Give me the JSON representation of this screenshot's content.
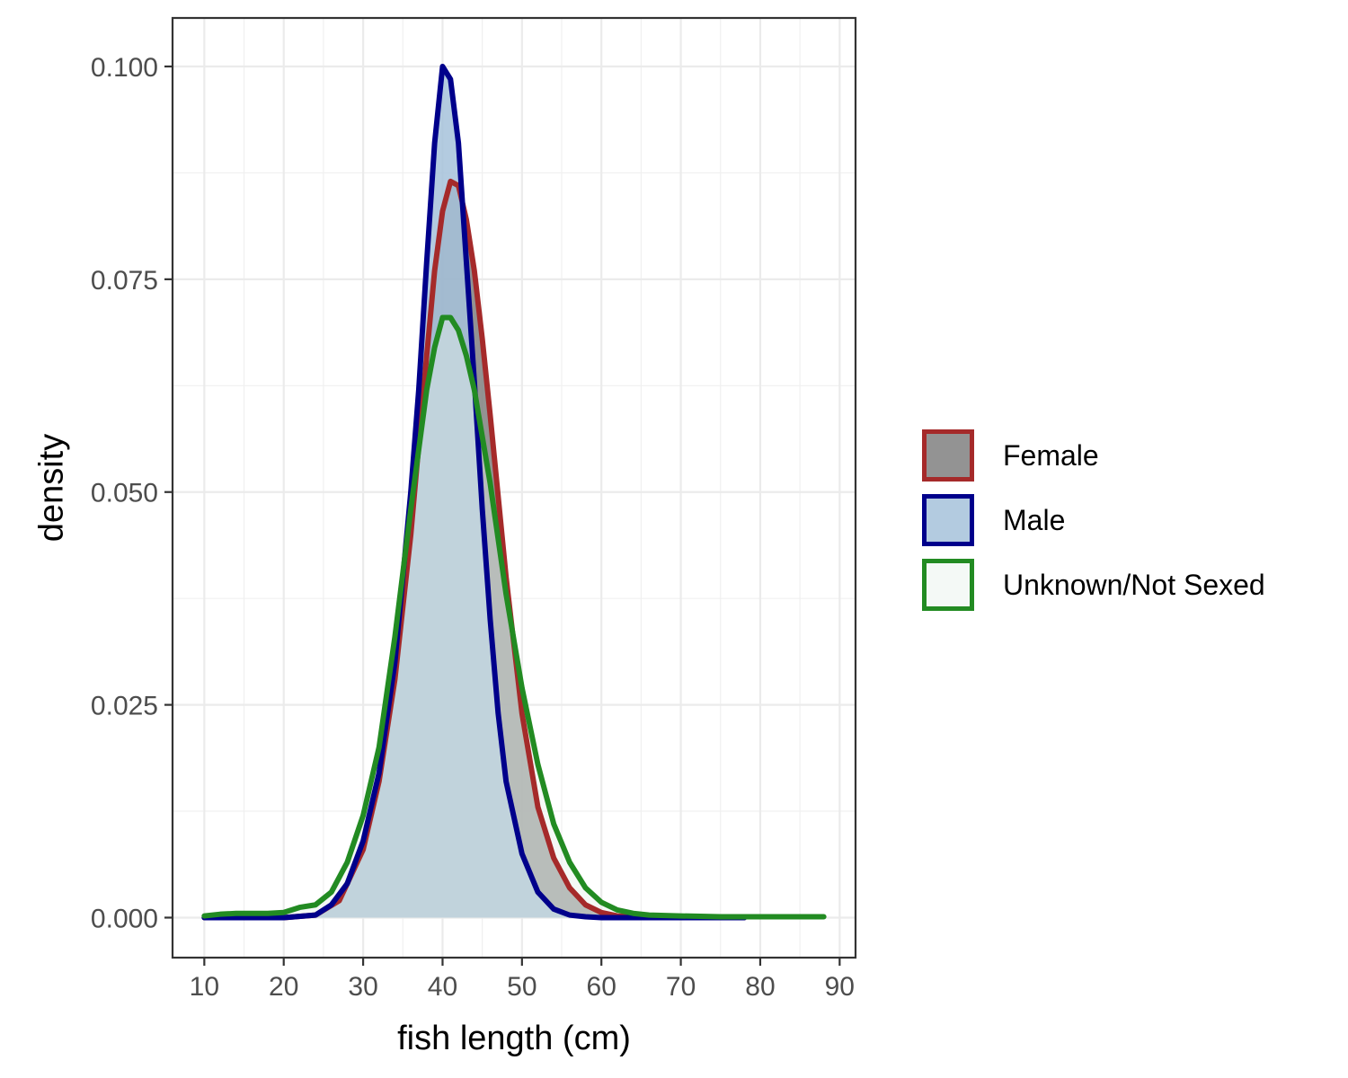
{
  "chart_data": {
    "type": "area",
    "xlabel": "fish length (cm)",
    "ylabel": "density",
    "xlim": [
      6,
      92
    ],
    "ylim": [
      -0.0047,
      0.1057
    ],
    "x_ticks": [
      10,
      20,
      30,
      40,
      50,
      60,
      70,
      80,
      90
    ],
    "x_tick_labels": [
      "10",
      "20",
      "30",
      "40",
      "50",
      "60",
      "70",
      "80",
      "90"
    ],
    "y_ticks": [
      0,
      0.025,
      0.05,
      0.075,
      0.1
    ],
    "y_tick_labels": [
      "0.000",
      "0.025",
      "0.050",
      "0.075",
      "0.100"
    ],
    "grid": true,
    "legend_position": "right",
    "series": [
      {
        "name": "Female",
        "line_color": "#a52a2a",
        "fill_color": "#808080",
        "fill_opacity": 0.85,
        "x": [
          10,
          20,
          24,
          27,
          30,
          32,
          34,
          36,
          38,
          39,
          40,
          41,
          42,
          43,
          44,
          45,
          46,
          48,
          50,
          52,
          54,
          56,
          58,
          60,
          62,
          65,
          70,
          75,
          78
        ],
        "y": [
          0,
          0,
          0.0003,
          0.002,
          0.008,
          0.016,
          0.028,
          0.045,
          0.066,
          0.076,
          0.083,
          0.0865,
          0.086,
          0.082,
          0.076,
          0.068,
          0.059,
          0.04,
          0.024,
          0.013,
          0.007,
          0.0035,
          0.0015,
          0.0006,
          0.0002,
          0.0001,
          0,
          0,
          0
        ]
      },
      {
        "name": "Male",
        "line_color": "#00008b",
        "fill_color": "#a6c2db",
        "fill_opacity": 0.85,
        "x": [
          10,
          20,
          24,
          26,
          28,
          30,
          32,
          34,
          36,
          37,
          38,
          39,
          40,
          41,
          42,
          43,
          44,
          45,
          46,
          47,
          48,
          50,
          52,
          54,
          56,
          58,
          60,
          64,
          70,
          78
        ],
        "y": [
          0,
          0,
          0.0003,
          0.0015,
          0.004,
          0.009,
          0.017,
          0.03,
          0.05,
          0.062,
          0.077,
          0.091,
          0.1,
          0.0985,
          0.091,
          0.077,
          0.063,
          0.048,
          0.035,
          0.024,
          0.016,
          0.0075,
          0.003,
          0.001,
          0.0003,
          0.0001,
          0,
          0,
          0,
          0
        ]
      },
      {
        "name": "Unknown/Not Sexed",
        "line_color": "#228b22",
        "fill_color": "#e6f2ea",
        "fill_opacity": 0.45,
        "x": [
          10,
          12,
          14,
          16,
          18,
          20,
          22,
          24,
          26,
          28,
          30,
          32,
          34,
          36,
          38,
          39,
          40,
          41,
          42,
          43,
          44,
          46,
          48,
          50,
          52,
          54,
          56,
          58,
          60,
          62,
          64,
          66,
          70,
          75,
          80,
          85,
          88
        ],
        "y": [
          0.0002,
          0.0004,
          0.0005,
          0.0005,
          0.0005,
          0.0006,
          0.0012,
          0.0015,
          0.003,
          0.0065,
          0.012,
          0.02,
          0.033,
          0.048,
          0.062,
          0.067,
          0.0705,
          0.0705,
          0.069,
          0.066,
          0.062,
          0.051,
          0.038,
          0.027,
          0.018,
          0.011,
          0.0065,
          0.0035,
          0.0018,
          0.0009,
          0.0005,
          0.0003,
          0.0002,
          0.0001,
          0.0001,
          0.0001,
          0.0001
        ]
      }
    ]
  }
}
